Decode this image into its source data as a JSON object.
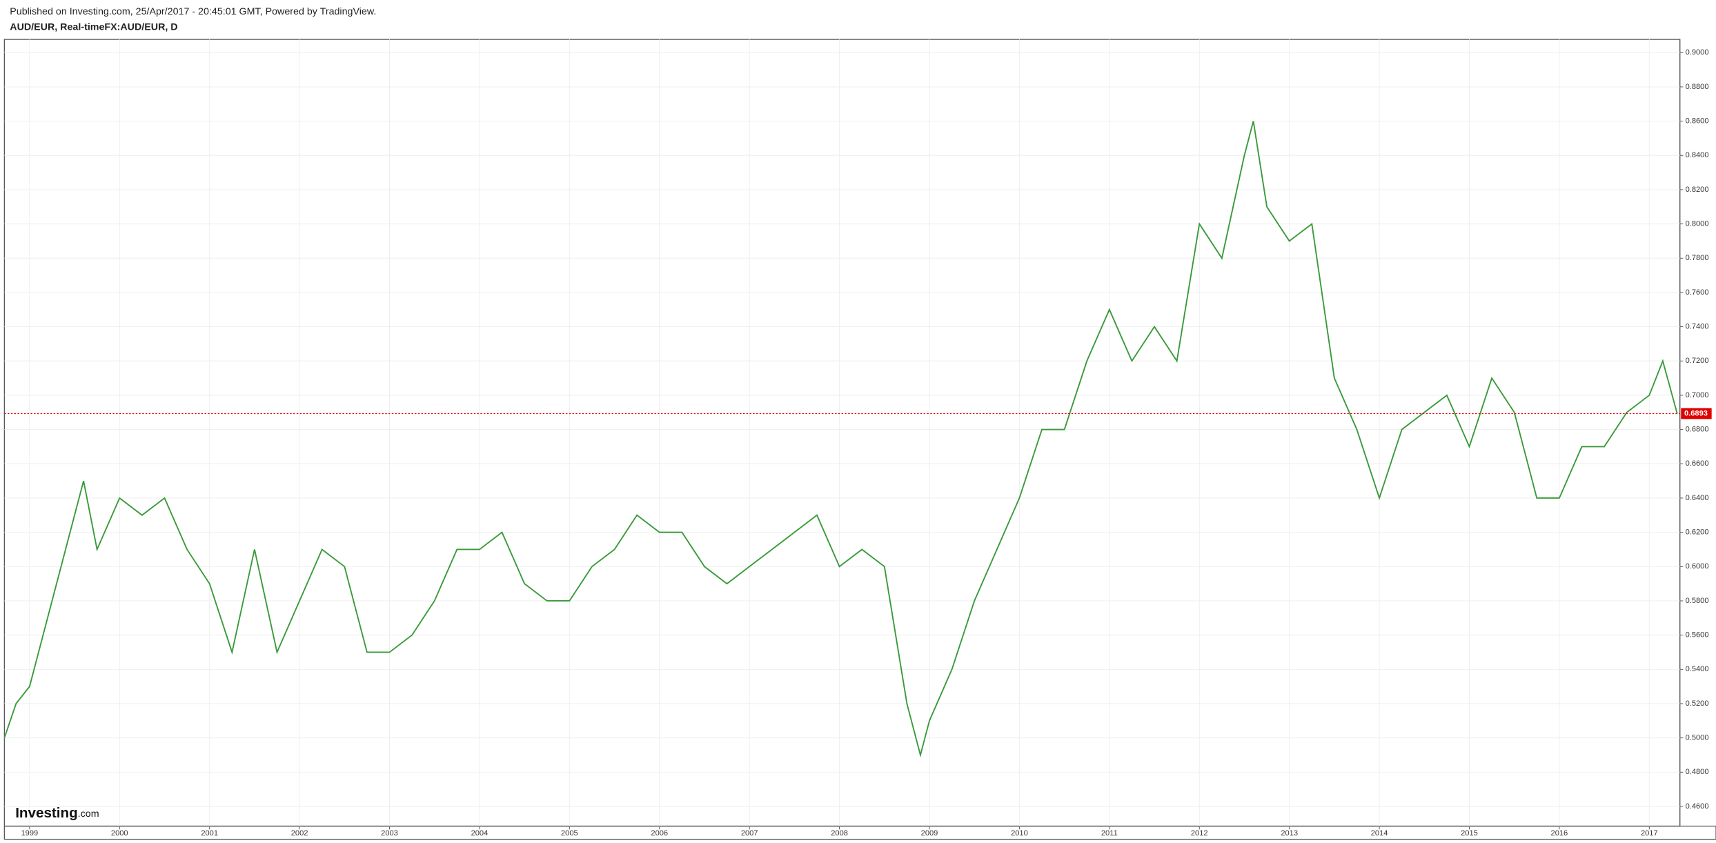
{
  "header": {
    "published": "Published on Investing.com, 25/Apr/2017 - 20:45:01 GMT, Powered by TradingView.",
    "symbol": "AUD/EUR, Real-timeFX:AUD/EUR, D"
  },
  "logo": {
    "brand": "Investing",
    "suffix": ".com"
  },
  "chart_data": {
    "type": "line",
    "x": [
      1998.72,
      1998.85,
      1999.0,
      1999.25,
      1999.5,
      1999.6,
      1999.75,
      2000.0,
      2000.25,
      2000.5,
      2000.75,
      2001.0,
      2001.25,
      2001.5,
      2001.75,
      2002.0,
      2002.25,
      2002.5,
      2002.75,
      2003.0,
      2003.25,
      2003.5,
      2003.75,
      2004.0,
      2004.25,
      2004.5,
      2004.75,
      2005.0,
      2005.25,
      2005.5,
      2005.75,
      2006.0,
      2006.25,
      2006.5,
      2006.75,
      2007.0,
      2007.25,
      2007.5,
      2007.75,
      2008.0,
      2008.25,
      2008.5,
      2008.75,
      2008.9,
      2009.0,
      2009.25,
      2009.5,
      2009.75,
      2010.0,
      2010.25,
      2010.5,
      2010.75,
      2011.0,
      2011.25,
      2011.5,
      2011.75,
      2012.0,
      2012.25,
      2012.5,
      2012.6,
      2012.75,
      2013.0,
      2013.25,
      2013.5,
      2013.75,
      2014.0,
      2014.25,
      2014.5,
      2014.75,
      2015.0,
      2015.25,
      2015.5,
      2015.75,
      2016.0,
      2016.25,
      2016.5,
      2016.75,
      2017.0,
      2017.15,
      2017.31
    ],
    "series": [
      {
        "name": "AUD/EUR",
        "color": "#3a9a3a",
        "values": [
          0.5,
          0.52,
          0.53,
          0.58,
          0.63,
          0.65,
          0.61,
          0.64,
          0.63,
          0.64,
          0.61,
          0.59,
          0.55,
          0.61,
          0.55,
          0.58,
          0.61,
          0.6,
          0.55,
          0.55,
          0.56,
          0.58,
          0.61,
          0.61,
          0.62,
          0.59,
          0.58,
          0.58,
          0.6,
          0.61,
          0.63,
          0.62,
          0.62,
          0.6,
          0.59,
          0.6,
          0.61,
          0.62,
          0.63,
          0.6,
          0.61,
          0.6,
          0.52,
          0.49,
          0.51,
          0.54,
          0.58,
          0.61,
          0.64,
          0.68,
          0.68,
          0.72,
          0.75,
          0.72,
          0.74,
          0.72,
          0.8,
          0.78,
          0.84,
          0.86,
          0.81,
          0.79,
          0.8,
          0.71,
          0.68,
          0.64,
          0.68,
          0.69,
          0.7,
          0.67,
          0.71,
          0.69,
          0.64,
          0.64,
          0.67,
          0.67,
          0.69,
          0.7,
          0.72,
          0.6893
        ]
      }
    ],
    "xlim": [
      1998.72,
      2017.34
    ],
    "xticks": [
      1999,
      2000,
      2001,
      2002,
      2003,
      2004,
      2005,
      2006,
      2007,
      2008,
      2009,
      2010,
      2011,
      2012,
      2013,
      2014,
      2015,
      2016,
      2017
    ],
    "ylim": [
      0.4485,
      0.9077
    ],
    "yticks": [
      {
        "value": 0.46,
        "label": "0.4600"
      },
      {
        "value": 0.48,
        "label": "0.4800"
      },
      {
        "value": 0.5,
        "label": "0.5000"
      },
      {
        "value": 0.52,
        "label": "0.5200"
      },
      {
        "value": 0.54,
        "label": "0.5400"
      },
      {
        "value": 0.56,
        "label": "0.5600"
      },
      {
        "value": 0.58,
        "label": "0.5800"
      },
      {
        "value": 0.6,
        "label": "0.6000"
      },
      {
        "value": 0.62,
        "label": "0.6200"
      },
      {
        "value": 0.64,
        "label": "0.6400"
      },
      {
        "value": 0.66,
        "label": "0.6600"
      },
      {
        "value": 0.68,
        "label": "0.6800"
      },
      {
        "value": 0.7,
        "label": "0.7000"
      },
      {
        "value": 0.72,
        "label": "0.7200"
      },
      {
        "value": 0.74,
        "label": "0.7400"
      },
      {
        "value": 0.76,
        "label": "0.7600"
      },
      {
        "value": 0.78,
        "label": "0.7800"
      },
      {
        "value": 0.8,
        "label": "0.8000"
      },
      {
        "value": 0.82,
        "label": "0.8200"
      },
      {
        "value": 0.84,
        "label": "0.8400"
      },
      {
        "value": 0.86,
        "label": "0.8600"
      },
      {
        "value": 0.88,
        "label": "0.8800"
      },
      {
        "value": 0.9,
        "label": "0.9000"
      }
    ],
    "grid": true,
    "last_price": {
      "value": 0.6893,
      "label": "0.6893",
      "color": "#e00000"
    }
  }
}
